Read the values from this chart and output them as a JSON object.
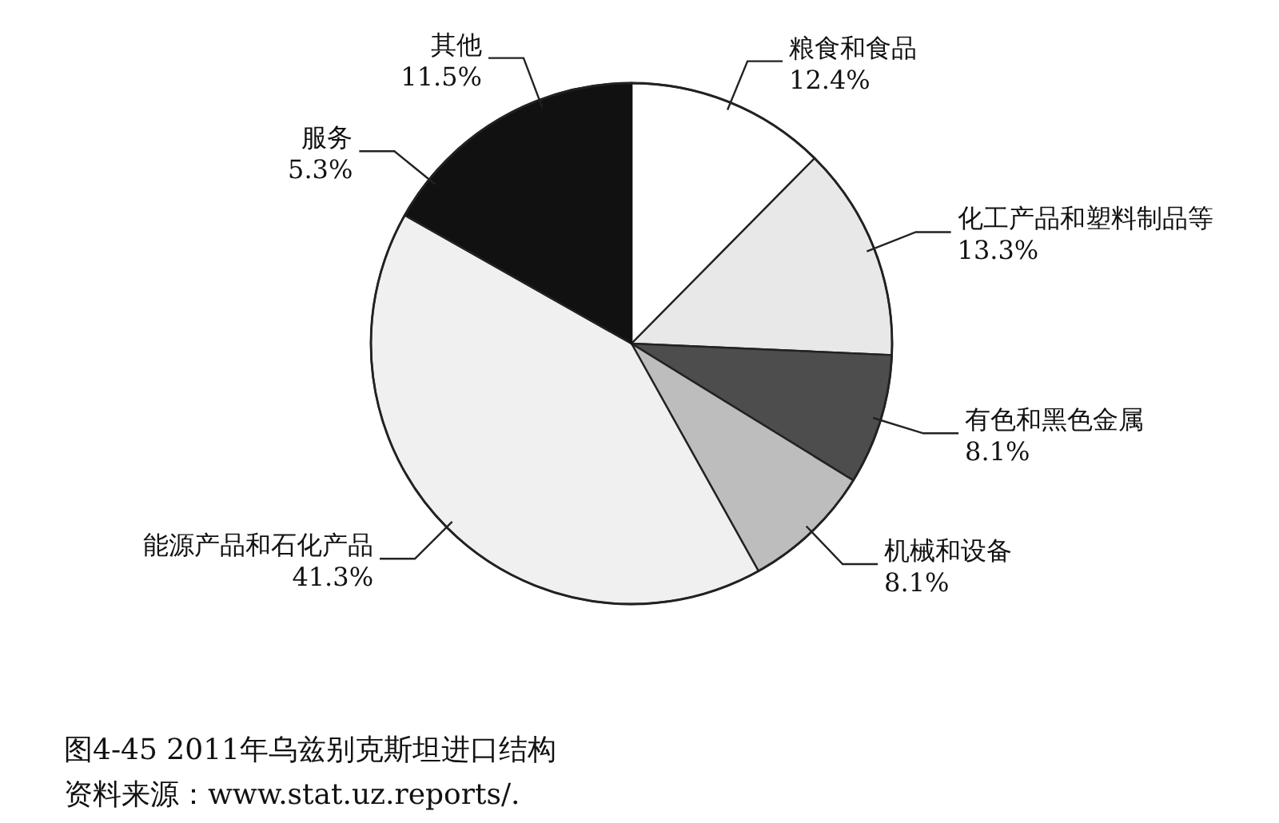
{
  "chart_data": {
    "type": "pie",
    "title": "图4-45   2011年乌兹别克斯坦进口结构",
    "categories": [
      "粮食和食品",
      "化工产品和塑料制品等",
      "有色和黑色金属",
      "机械和设备",
      "能源产品和石化产品",
      "服务",
      "其他"
    ],
    "values": [
      12.4,
      13.3,
      8.1,
      8.1,
      41.3,
      5.3,
      11.5
    ],
    "value_labels": [
      "12.4%",
      "13.3%",
      "8.1%",
      "8.1%",
      "41.3%",
      "5.3%",
      "11.5%"
    ],
    "colors": [
      "#ffffff",
      "#e8e8e8",
      "#4d4d4d",
      "#bdbdbd",
      "#f0f0f0",
      "#111111",
      "#111111"
    ],
    "annotations": [
      "资料来源：www.stat.uz.reports/."
    ]
  }
}
